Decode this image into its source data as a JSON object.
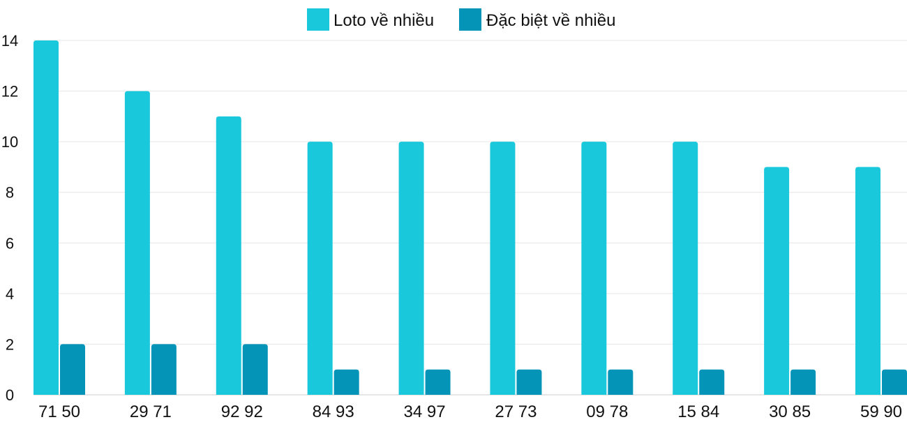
{
  "chart_data": {
    "type": "bar",
    "categories": [
      "71 50",
      "29 71",
      "92 92",
      "84 93",
      "34 97",
      "27 73",
      "09 78",
      "15 84",
      "30 85",
      "59 90"
    ],
    "series": [
      {
        "name": "Loto về nhiều",
        "color": "#1ac8db",
        "values": [
          14,
          12,
          11,
          10,
          10,
          10,
          10,
          10,
          9,
          9
        ]
      },
      {
        "name": "Đặc biệt về nhiều",
        "color": "#0494b8",
        "values": [
          2,
          2,
          2,
          1,
          1,
          1,
          1,
          1,
          1,
          1
        ]
      }
    ],
    "yticks": [
      0,
      2,
      4,
      6,
      8,
      10,
      12,
      14
    ],
    "ylim": [
      0,
      14
    ],
    "grid": true,
    "legend": "top-center",
    "title": "",
    "xlabel": "",
    "ylabel": ""
  }
}
